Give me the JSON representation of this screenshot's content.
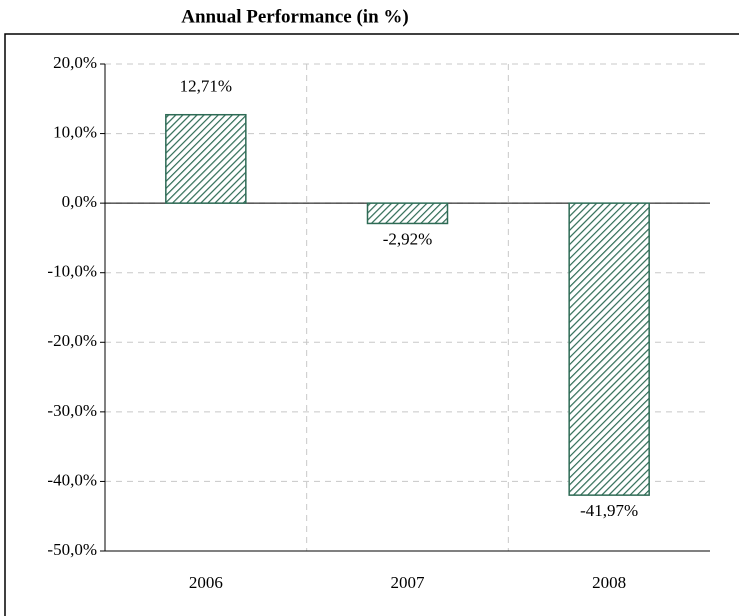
{
  "chart_data": {
    "type": "bar",
    "title": "Annual Performance (in %)",
    "categories": [
      "2006",
      "2007",
      "2008"
    ],
    "values": [
      12.71,
      -2.92,
      -41.97
    ],
    "value_labels": [
      "12,71%",
      "-2,92%",
      "-41,97%"
    ],
    "color": "#2e6b55",
    "ylim": [
      -50,
      20
    ],
    "yticks": [
      {
        "value": -50,
        "label": "-50,0%"
      },
      {
        "value": -40,
        "label": "-40,0%"
      },
      {
        "value": -30,
        "label": "-30,0%"
      },
      {
        "value": -20,
        "label": "-20,0%"
      },
      {
        "value": -10,
        "label": "-10,0%"
      },
      {
        "value": 0,
        "label": "0,0%"
      },
      {
        "value": 10,
        "label": "10,0%"
      },
      {
        "value": 20,
        "label": "20,0%"
      }
    ],
    "grid": true
  }
}
